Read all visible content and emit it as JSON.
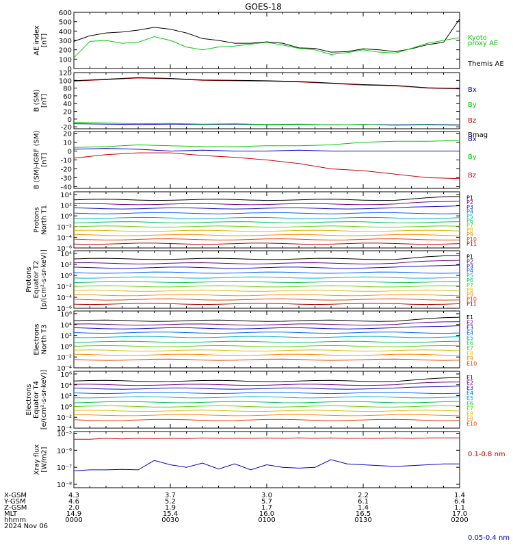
{
  "title": "GOES-18",
  "colors": {
    "axis": "#000000",
    "black": "#000000",
    "green": "#00cc00",
    "red": "#cc0000",
    "blue": "#0000cc",
    "darkred": "#990000",
    "channels": [
      "#000000",
      "#700080",
      "#1010c0",
      "#0060ff",
      "#00b0c0",
      "#00c060",
      "#60d000",
      "#d0c000",
      "#ff8800",
      "#e04000",
      "#b00000"
    ]
  },
  "ephemeris": {
    "rows": [
      {
        "label": "X-GSM",
        "values": [
          "4.3",
          "3.7",
          "3.0",
          "2.2",
          "1.4"
        ]
      },
      {
        "label": "Y-GSM",
        "values": [
          "4.6",
          "5.2",
          "5.7",
          "6.1",
          "6.4"
        ]
      },
      {
        "label": "Z-GSM",
        "values": [
          "2.0",
          "1.9",
          "1.7",
          "1.4",
          "1.1"
        ]
      },
      {
        "label": "MLT",
        "values": [
          "14.9",
          "15.4",
          "16.0",
          "16.5",
          "17.0"
        ]
      },
      {
        "label": "hhmm",
        "values": [
          "0000",
          "0030",
          "0100",
          "0130",
          "0200"
        ]
      }
    ],
    "date": "2024 Nov 06"
  },
  "chart_data": [
    {
      "id": "ae",
      "type": "line",
      "ylabel": [
        "AE index",
        "[nT]"
      ],
      "ylim": [
        0,
        600
      ],
      "yticks": [
        "0",
        "100",
        "200",
        "300",
        "400",
        "500",
        "600"
      ],
      "x": [
        0,
        5,
        10,
        15,
        20,
        25,
        30,
        35,
        40,
        45,
        50,
        55,
        60,
        65,
        70,
        75,
        80,
        85,
        90,
        95,
        100,
        105,
        110,
        115,
        120
      ],
      "series": [
        {
          "name": "Themis AE",
          "color": "black",
          "values": [
            290,
            350,
            380,
            390,
            410,
            440,
            420,
            380,
            320,
            300,
            270,
            270,
            285,
            270,
            220,
            215,
            175,
            180,
            210,
            200,
            180,
            210,
            255,
            280,
            530
          ]
        },
        {
          "name": "Kyoto proxy AE",
          "color": "green",
          "values": [
            115,
            290,
            300,
            270,
            280,
            340,
            300,
            230,
            200,
            230,
            240,
            260,
            280,
            250,
            215,
            200,
            150,
            170,
            200,
            175,
            165,
            215,
            270,
            300,
            330
          ]
        }
      ]
    },
    {
      "id": "b",
      "type": "line",
      "ylabel": [
        "B (SM)",
        "[nT]"
      ],
      "ylim": [
        -25,
        120
      ],
      "yticks": [
        "-20",
        "0",
        "20",
        "40",
        "60",
        "80",
        "100",
        "120"
      ],
      "x": [
        0,
        10,
        20,
        30,
        40,
        50,
        60,
        70,
        80,
        90,
        100,
        110,
        120
      ],
      "series": [
        {
          "name": "Bx",
          "color": "blue",
          "values": [
            -12,
            -13,
            -14,
            -13,
            -14,
            -13,
            -15,
            -14,
            -15,
            -14,
            -15,
            -14,
            -15
          ]
        },
        {
          "name": "By",
          "color": "green",
          "values": [
            -8,
            -10,
            -12,
            -11,
            -13,
            -12,
            -14,
            -13,
            -15,
            -14,
            -16,
            -15,
            -16
          ]
        },
        {
          "name": "Bz",
          "color": "red",
          "values": [
            98,
            102,
            106,
            104,
            100,
            99,
            98,
            96,
            92,
            88,
            86,
            80,
            78
          ]
        },
        {
          "name": "Bmag",
          "color": "black",
          "values": [
            99,
            103,
            107,
            105,
            101,
            100,
            99,
            97,
            93,
            89,
            87,
            81,
            79
          ]
        }
      ]
    },
    {
      "id": "bdiff",
      "type": "line",
      "ylabel": [
        "B (SM)-IGRF (SM)",
        "[nT]"
      ],
      "ylim": [
        -42,
        22
      ],
      "yticks": [
        "-40",
        "-30",
        "-20",
        "-10",
        "0",
        "10",
        "20"
      ],
      "x": [
        0,
        10,
        20,
        30,
        40,
        50,
        60,
        70,
        80,
        90,
        100,
        110,
        120
      ],
      "series": [
        {
          "name": "Bx",
          "color": "blue",
          "values": [
            2,
            3,
            2,
            0,
            1,
            0,
            0,
            1,
            0,
            0,
            0,
            0,
            0
          ]
        },
        {
          "name": "By",
          "color": "green",
          "values": [
            4,
            5,
            7,
            6,
            5,
            5,
            6,
            6,
            7,
            10,
            11,
            11,
            12
          ]
        },
        {
          "name": "Bz",
          "color": "red",
          "values": [
            -8,
            -4,
            -2,
            -2,
            -5,
            -7,
            -10,
            -14,
            -20,
            -22,
            -26,
            -30,
            -31
          ]
        }
      ]
    },
    {
      "id": "p1",
      "type": "line",
      "log": true,
      "ylabel": [
        "Protons",
        "North T1"
      ],
      "ylim": [
        -6,
        4.5
      ],
      "yticks": [
        -6,
        -4,
        -2,
        0,
        2,
        4
      ],
      "channels": [
        "P1",
        "P2",
        "P3",
        "P4",
        "P5",
        "P6",
        "P7",
        "P8",
        "P9",
        "P10",
        "P11"
      ],
      "levels": [
        3.0,
        2.2,
        1.4,
        0.5,
        -0.4,
        -1.2,
        -2.0,
        -2.8,
        -3.6,
        -4.4,
        -5.2
      ]
    },
    {
      "id": "p2",
      "type": "line",
      "log": true,
      "ylabel": [
        "Protons",
        "Equator T2",
        "[p/(cm²-s-sr-keV)]"
      ],
      "ylim": [
        -6,
        4.5
      ],
      "yticks": [
        -6,
        -4,
        -2,
        0,
        2,
        4
      ],
      "channels": [
        "P1",
        "P2",
        "P3",
        "P4",
        "P5",
        "P6",
        "P7",
        "P8",
        "P9",
        "P10",
        "P11"
      ],
      "levels": [
        3.0,
        2.2,
        1.4,
        0.5,
        -0.4,
        -1.2,
        -2.0,
        -2.8,
        -3.6,
        -4.4,
        -5.2
      ]
    },
    {
      "id": "e1",
      "type": "line",
      "log": true,
      "ylabel": [
        "Electrons",
        "North T3"
      ],
      "ylim": [
        -4,
        6.5
      ],
      "yticks": [
        -4,
        -2,
        0,
        2,
        4,
        6
      ],
      "channels": [
        "E1",
        "E2",
        "E3",
        "E4",
        "E5",
        "E6",
        "E7",
        "E8",
        "E9",
        "E10"
      ],
      "levels": [
        4.7,
        4.0,
        3.3,
        2.5,
        1.7,
        0.8,
        0.0,
        -0.8,
        -1.6,
        -2.5
      ]
    },
    {
      "id": "e2",
      "type": "line",
      "log": true,
      "ylabel": [
        "Electrons",
        "Equator T4",
        "[e/(cm²-s-sr-keV)]"
      ],
      "ylim": [
        -4,
        6.5
      ],
      "yticks": [
        -4,
        -2,
        0,
        2,
        4,
        6
      ],
      "channels": [
        "E1",
        "E2",
        "E3",
        "E4",
        "E5",
        "E6",
        "E7",
        "E8",
        "E9",
        "E10"
      ],
      "levels": [
        4.7,
        4.0,
        3.3,
        2.5,
        1.7,
        0.8,
        0.0,
        -0.8,
        -1.6,
        -2.5
      ]
    },
    {
      "id": "xray",
      "type": "line",
      "log": true,
      "ylabel": [
        "Xray flux",
        "[W/m2]"
      ],
      "ylim": [
        -8.2,
        -4.9
      ],
      "yticks": [
        -8,
        -7,
        -6,
        -5
      ],
      "x": [
        0,
        5,
        10,
        15,
        20,
        25,
        30,
        35,
        40,
        45,
        50,
        55,
        60,
        65,
        70,
        75,
        80,
        85,
        90,
        95,
        100,
        105,
        110,
        115,
        120
      ],
      "series": [
        {
          "name": "0.1-0.8 nm",
          "color": "red",
          "values": [
            -5.35,
            -5.35,
            -5.3,
            -5.33,
            -5.3,
            -5.32,
            -5.3,
            -5.31,
            -5.28,
            -5.3,
            -5.29,
            -5.3,
            -5.28,
            -5.3,
            -5.27,
            -5.3,
            -5.28,
            -5.3,
            -5.29,
            -5.3,
            -5.28,
            -5.3,
            -5.28,
            -5.27,
            -5.27
          ]
        },
        {
          "name": "0.05-0.4 nm",
          "color": "blue",
          "values": [
            -7.2,
            -7.15,
            -7.15,
            -7.12,
            -7.15,
            -6.6,
            -6.85,
            -7.0,
            -6.75,
            -7.1,
            -6.8,
            -7.15,
            -6.85,
            -7.0,
            -7.05,
            -7.0,
            -6.55,
            -6.8,
            -6.85,
            -6.9,
            -6.95,
            -6.9,
            -6.85,
            -6.8,
            -6.8
          ]
        }
      ]
    }
  ]
}
